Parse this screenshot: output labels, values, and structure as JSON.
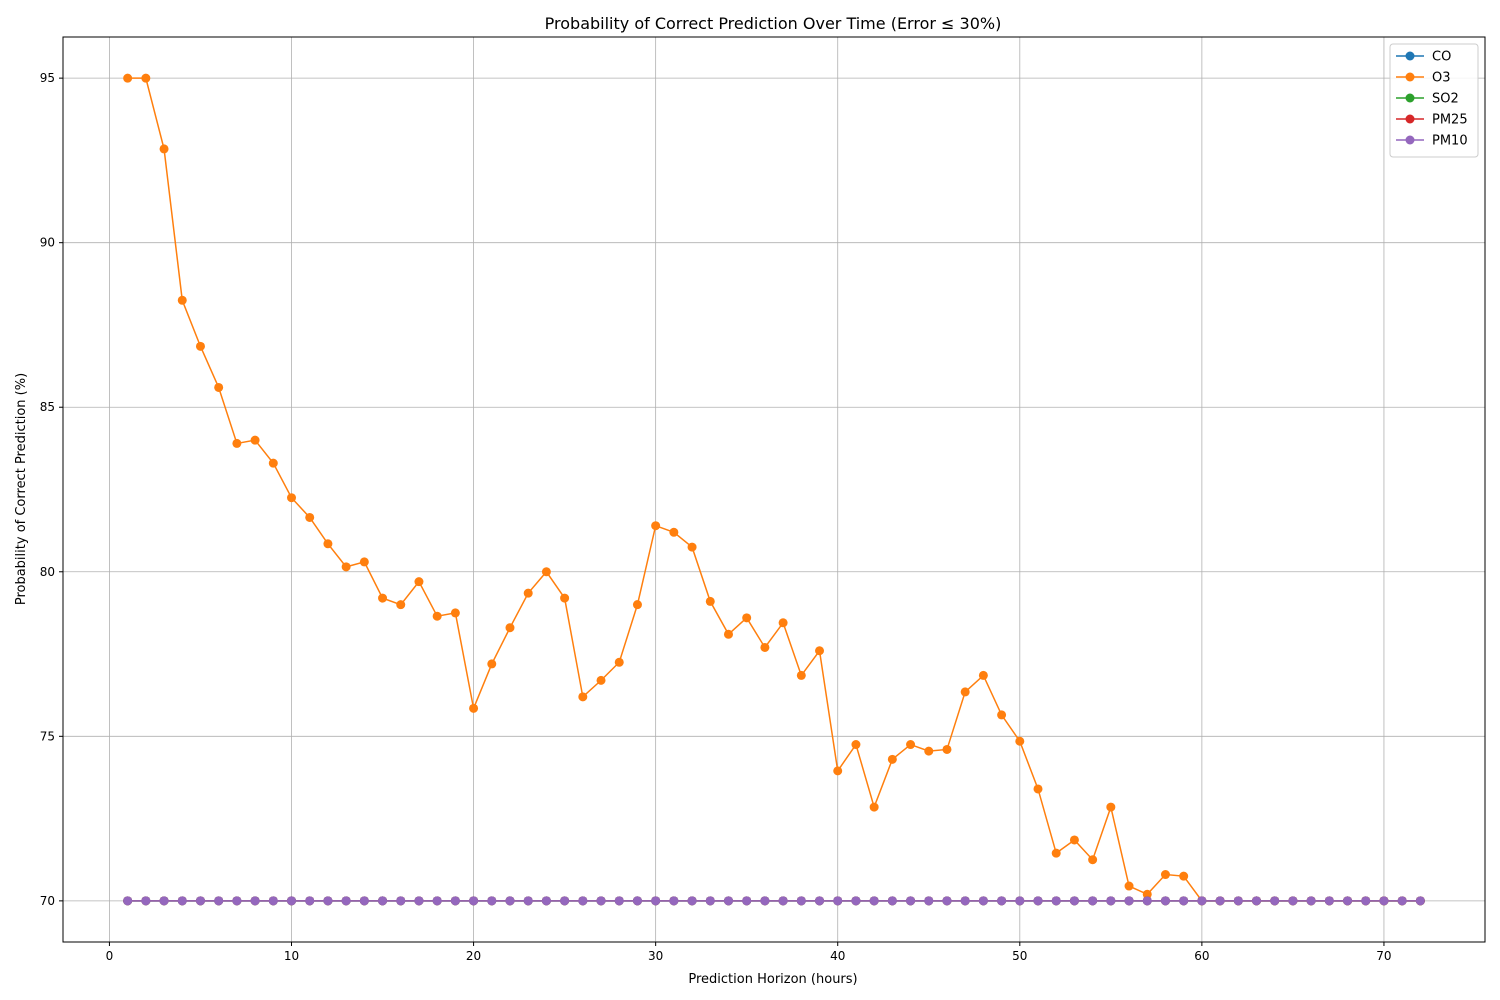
{
  "chart_data": {
    "type": "line",
    "title": "Probability of Correct Prediction Over Time (Error ≤ 30%)",
    "xlabel": "Prediction Horizon (hours)",
    "ylabel": "Probability of Correct Prediction (%)",
    "xlim": [
      -2.55,
      75.55
    ],
    "ylim": [
      68.75,
      96.25
    ],
    "xticks": [
      0,
      10,
      20,
      30,
      40,
      50,
      60,
      70
    ],
    "yticks": [
      70,
      75,
      80,
      85,
      90,
      95
    ],
    "grid": true,
    "legend_position": "top-right",
    "x": [
      1,
      2,
      3,
      4,
      5,
      6,
      7,
      8,
      9,
      10,
      11,
      12,
      13,
      14,
      15,
      16,
      17,
      18,
      19,
      20,
      21,
      22,
      23,
      24,
      25,
      26,
      27,
      28,
      29,
      30,
      31,
      32,
      33,
      34,
      35,
      36,
      37,
      38,
      39,
      40,
      41,
      42,
      43,
      44,
      45,
      46,
      47,
      48,
      49,
      50,
      51,
      52,
      53,
      54,
      55,
      56,
      57,
      58,
      59,
      60,
      61,
      62,
      63,
      64,
      65,
      66,
      67,
      68,
      69,
      70,
      71,
      72
    ],
    "series": [
      {
        "name": "CO",
        "color": "#1f77b4",
        "values": [
          70,
          70,
          70,
          70,
          70,
          70,
          70,
          70,
          70,
          70,
          70,
          70,
          70,
          70,
          70,
          70,
          70,
          70,
          70,
          70,
          70,
          70,
          70,
          70,
          70,
          70,
          70,
          70,
          70,
          70,
          70,
          70,
          70,
          70,
          70,
          70,
          70,
          70,
          70,
          70,
          70,
          70,
          70,
          70,
          70,
          70,
          70,
          70,
          70,
          70,
          70,
          70,
          70,
          70,
          70,
          70,
          70,
          70,
          70,
          70,
          70,
          70,
          70,
          70,
          70,
          70,
          70,
          70,
          70,
          70,
          70,
          70
        ]
      },
      {
        "name": "O3",
        "color": "#ff7f0e",
        "values": [
          95.0,
          95.0,
          92.85,
          88.25,
          86.85,
          85.6,
          83.9,
          84.0,
          83.3,
          82.25,
          81.65,
          80.85,
          80.15,
          80.3,
          79.2,
          79.0,
          79.7,
          78.65,
          78.75,
          75.85,
          77.2,
          78.3,
          79.35,
          80.0,
          79.2,
          76.2,
          76.7,
          77.25,
          79.0,
          81.4,
          81.2,
          80.75,
          79.1,
          78.1,
          78.6,
          77.7,
          78.45,
          76.85,
          77.6,
          73.95,
          74.75,
          72.85,
          74.3,
          74.75,
          74.55,
          74.6,
          76.35,
          76.85,
          75.65,
          74.85,
          73.4,
          71.45,
          71.85,
          71.25,
          72.85,
          70.45,
          70.2,
          70.8,
          70.75,
          70,
          70,
          70,
          70,
          70,
          70,
          70,
          70,
          70,
          70,
          70,
          70,
          70
        ]
      },
      {
        "name": "SO2",
        "color": "#2ca02c",
        "values": [
          70,
          70,
          70,
          70,
          70,
          70,
          70,
          70,
          70,
          70,
          70,
          70,
          70,
          70,
          70,
          70,
          70,
          70,
          70,
          70,
          70,
          70,
          70,
          70,
          70,
          70,
          70,
          70,
          70,
          70,
          70,
          70,
          70,
          70,
          70,
          70,
          70,
          70,
          70,
          70,
          70,
          70,
          70,
          70,
          70,
          70,
          70,
          70,
          70,
          70,
          70,
          70,
          70,
          70,
          70,
          70,
          70,
          70,
          70,
          70,
          70,
          70,
          70,
          70,
          70,
          70,
          70,
          70,
          70,
          70,
          70,
          70
        ]
      },
      {
        "name": "PM25",
        "color": "#d62728",
        "values": [
          70,
          70,
          70,
          70,
          70,
          70,
          70,
          70,
          70,
          70,
          70,
          70,
          70,
          70,
          70,
          70,
          70,
          70,
          70,
          70,
          70,
          70,
          70,
          70,
          70,
          70,
          70,
          70,
          70,
          70,
          70,
          70,
          70,
          70,
          70,
          70,
          70,
          70,
          70,
          70,
          70,
          70,
          70,
          70,
          70,
          70,
          70,
          70,
          70,
          70,
          70,
          70,
          70,
          70,
          70,
          70,
          70,
          70,
          70,
          70,
          70,
          70,
          70,
          70,
          70,
          70,
          70,
          70,
          70,
          70,
          70,
          70
        ]
      },
      {
        "name": "PM10",
        "color": "#9467bd",
        "values": [
          70,
          70,
          70,
          70,
          70,
          70,
          70,
          70,
          70,
          70,
          70,
          70,
          70,
          70,
          70,
          70,
          70,
          70,
          70,
          70,
          70,
          70,
          70,
          70,
          70,
          70,
          70,
          70,
          70,
          70,
          70,
          70,
          70,
          70,
          70,
          70,
          70,
          70,
          70,
          70,
          70,
          70,
          70,
          70,
          70,
          70,
          70,
          70,
          70,
          70,
          70,
          70,
          70,
          70,
          70,
          70,
          70,
          70,
          70,
          70,
          70,
          70,
          70,
          70,
          70,
          70,
          70,
          70,
          70,
          70,
          70,
          70
        ]
      }
    ]
  }
}
